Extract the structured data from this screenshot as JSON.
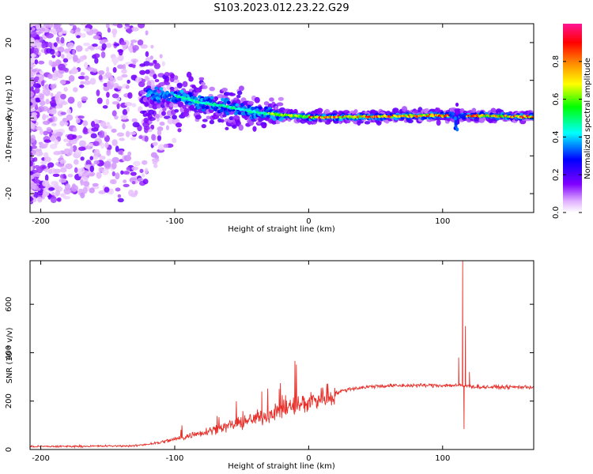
{
  "title": "S103.2023.012.23.22.G29",
  "chart_data": [
    {
      "type": "heatmap",
      "xlabel": "Height of straight line (km)",
      "ylabel": "Frequency (Hz)",
      "xlim": [
        -208,
        168
      ],
      "ylim": [
        -25,
        25
      ],
      "xticks": [
        -200,
        -100,
        0,
        100
      ],
      "yticks": [
        -20,
        -10,
        0,
        10,
        20
      ],
      "colorbar": {
        "label": "Normalized spectral amplitude",
        "range": [
          0,
          1
        ],
        "ticks": [
          0.0,
          0.2,
          0.4,
          0.6,
          0.8
        ],
        "colors": [
          "#ffffff",
          "#e0b0ff",
          "#8000ff",
          "#0000ff",
          "#00ffff",
          "#00ff00",
          "#ffff00",
          "#ff8000",
          "#ff0000",
          "#ff1493"
        ]
      },
      "ridge": [
        {
          "x": -120,
          "y": 6.5
        },
        {
          "x": -100,
          "y": 6
        },
        {
          "x": -80,
          "y": 4
        },
        {
          "x": -60,
          "y": 3
        },
        {
          "x": -40,
          "y": 1.5
        },
        {
          "x": -20,
          "y": 0.8
        },
        {
          "x": 0,
          "y": 0.3
        },
        {
          "x": 40,
          "y": 0.3
        },
        {
          "x": 80,
          "y": 0.6
        },
        {
          "x": 110,
          "y": 0.8
        },
        {
          "x": 168,
          "y": 0.3
        }
      ]
    },
    {
      "type": "line",
      "xlabel": "Height of straight line (km)",
      "ylabel": "SNR (10 * v/v)",
      "xlim": [
        -208,
        168
      ],
      "ylim": [
        0,
        780
      ],
      "xticks": [
        -200,
        -100,
        0,
        100
      ],
      "yticks": [
        0,
        200,
        400,
        600
      ],
      "color": "#e8302a",
      "trend": [
        {
          "x": -208,
          "y": 12
        },
        {
          "x": -130,
          "y": 15
        },
        {
          "x": -110,
          "y": 30
        },
        {
          "x": -90,
          "y": 55
        },
        {
          "x": -70,
          "y": 85
        },
        {
          "x": -50,
          "y": 110
        },
        {
          "x": -30,
          "y": 145
        },
        {
          "x": -10,
          "y": 180
        },
        {
          "x": 10,
          "y": 215
        },
        {
          "x": 30,
          "y": 250
        },
        {
          "x": 50,
          "y": 262
        },
        {
          "x": 80,
          "y": 265
        },
        {
          "x": 110,
          "y": 265
        },
        {
          "x": 130,
          "y": 258
        },
        {
          "x": 168,
          "y": 258
        }
      ],
      "spikes": [
        {
          "x": -35,
          "y": 240
        },
        {
          "x": -22,
          "y": 250
        },
        {
          "x": 112,
          "y": 380
        },
        {
          "x": 115,
          "y": 780
        },
        {
          "x": 116,
          "y": 85
        },
        {
          "x": 117,
          "y": 510
        },
        {
          "x": 120,
          "y": 320
        }
      ]
    }
  ]
}
